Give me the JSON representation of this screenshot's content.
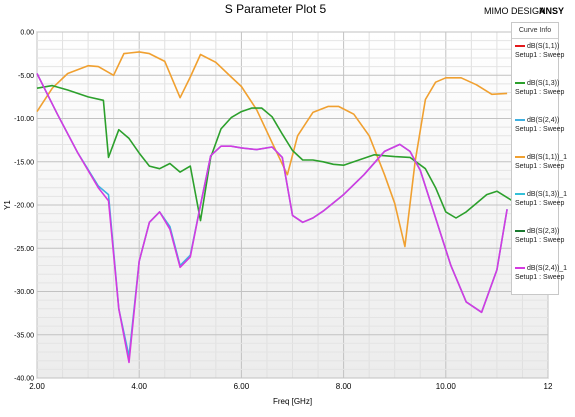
{
  "header": {
    "title": "S Parameter Plot 5",
    "brand_left": "MIMO DESIGN",
    "brand_right": "ANSY"
  },
  "legend": {
    "title": "Curve Info",
    "items": [
      {
        "name": "dB(S(1,1))",
        "sub": "Setup1 : Sweep",
        "color": "#e31a1c"
      },
      {
        "name": "dB(S(1,3))",
        "sub": "Setup1 : Sweep",
        "color": "#2ca02c"
      },
      {
        "name": "dB(S(2,4))",
        "sub": "Setup1 : Sweep",
        "color": "#3fb0e0"
      },
      {
        "name": "dB(S(1,1))_1",
        "sub": "Setup1 : Sweep",
        "color": "#f0a030"
      },
      {
        "name": "dB(S(1,3))_1",
        "sub": "Setup1 : Sweep",
        "color": "#35c0d8"
      },
      {
        "name": "dB(S(2,3))",
        "sub": "Setup1 : Sweep",
        "color": "#1a7a30"
      },
      {
        "name": "dB(S(2,4))_1",
        "sub": "Setup1 : Sweep",
        "color": "#d43ae0"
      }
    ]
  },
  "chart_data": {
    "type": "line",
    "title": "S Parameter Plot 5",
    "xlabel": "Freq [GHz]",
    "ylabel": "Y1",
    "xlim": [
      2.0,
      12.0
    ],
    "ylim": [
      -40.0,
      0.0
    ],
    "xticks": [
      "2.00",
      "4.00",
      "6.00",
      "8.00",
      "10.00",
      "12"
    ],
    "yticks": [
      "0.00",
      "-5.00",
      "-10.00",
      "-15.00",
      "-20.00",
      "-25.00",
      "-30.00",
      "-35.00",
      "-40.00"
    ],
    "grid": true,
    "legend_position": "right",
    "series": [
      {
        "name": "dB(S(1,1))_1",
        "color": "#f0a030",
        "x": [
          2.0,
          2.3,
          2.6,
          3.0,
          3.2,
          3.5,
          3.7,
          4.0,
          4.2,
          4.5,
          4.8,
          5.0,
          5.2,
          5.5,
          5.8,
          6.0,
          6.3,
          6.6,
          6.9,
          7.1,
          7.4,
          7.7,
          7.9,
          8.2,
          8.5,
          8.8,
          9.0,
          9.2,
          9.4,
          9.6,
          9.8,
          10.0,
          10.3,
          10.6,
          10.9,
          11.2
        ],
        "y": [
          -9.2,
          -6.5,
          -4.8,
          -3.9,
          -4.0,
          -5.0,
          -2.5,
          -2.3,
          -2.5,
          -3.4,
          -7.6,
          -5.2,
          -2.6,
          -3.5,
          -5.2,
          -6.3,
          -9.0,
          -12.8,
          -16.5,
          -12.0,
          -9.3,
          -8.6,
          -8.6,
          -9.5,
          -12.0,
          -16.5,
          -19.8,
          -24.8,
          -15.0,
          -7.8,
          -5.8,
          -5.3,
          -5.3,
          -6.1,
          -7.2,
          -7.1
        ]
      },
      {
        "name": "dB(S(1,3))",
        "color": "#2ca02c",
        "x": [
          2.0,
          2.3,
          2.6,
          3.0,
          3.3,
          3.4,
          3.6,
          3.8,
          4.0,
          4.2,
          4.4,
          4.6,
          4.8,
          5.0,
          5.2,
          5.4,
          5.6,
          5.8,
          6.0,
          6.2,
          6.4,
          6.6,
          6.8,
          7.0,
          7.2,
          7.4,
          7.6,
          7.8,
          8.0,
          8.3,
          8.6,
          9.0,
          9.3,
          9.6,
          9.8,
          10.0,
          10.2,
          10.4,
          10.6,
          10.8,
          11.0,
          11.3
        ],
        "y": [
          -6.5,
          -6.2,
          -6.7,
          -7.5,
          -7.9,
          -14.5,
          -11.3,
          -12.3,
          -14.0,
          -15.5,
          -15.8,
          -15.2,
          -16.2,
          -15.5,
          -21.8,
          -14.5,
          -11.2,
          -9.9,
          -9.2,
          -8.8,
          -8.8,
          -9.8,
          -11.8,
          -13.7,
          -14.8,
          -14.8,
          -15.0,
          -15.3,
          -15.4,
          -14.8,
          -14.2,
          -14.4,
          -14.5,
          -15.8,
          -18.0,
          -20.8,
          -21.5,
          -20.8,
          -19.8,
          -18.8,
          -18.4,
          -19.5
        ]
      },
      {
        "name": "dB(S(2,4))",
        "color": "#3fb0e0",
        "x": [
          2.0,
          2.4,
          2.8,
          3.2,
          3.4,
          3.6,
          3.8,
          4.0,
          4.2,
          4.4,
          4.6,
          4.8,
          5.0,
          5.2,
          5.4,
          5.6,
          5.8,
          6.0,
          6.3,
          6.6,
          6.8,
          7.0,
          7.2,
          7.4,
          7.6,
          8.0,
          8.4,
          8.8,
          9.1,
          9.3,
          9.5,
          9.8,
          10.1,
          10.4,
          10.7,
          11.0,
          11.2
        ],
        "y": [
          -4.8,
          -9.5,
          -14.0,
          -17.8,
          -18.8,
          -32.0,
          -37.5,
          -26.5,
          -22.0,
          -20.8,
          -22.5,
          -27.0,
          -25.8,
          -20.0,
          -14.3,
          -13.2,
          -13.2,
          -13.4,
          -13.6,
          -13.3,
          -14.5,
          -21.2,
          -22.0,
          -21.5,
          -20.7,
          -18.8,
          -16.5,
          -13.8,
          -13.0,
          -13.8,
          -16.0,
          -21.5,
          -27.0,
          -31.2,
          -32.4,
          -27.5,
          -20.5
        ]
      },
      {
        "name": "dB(S(2,4))_1",
        "color": "#d43ae0",
        "x": [
          2.0,
          2.4,
          2.8,
          3.2,
          3.4,
          3.6,
          3.8,
          4.0,
          4.2,
          4.4,
          4.6,
          4.8,
          5.0,
          5.2,
          5.4,
          5.6,
          5.8,
          6.0,
          6.3,
          6.6,
          6.8,
          7.0,
          7.2,
          7.4,
          7.6,
          8.0,
          8.4,
          8.8,
          9.1,
          9.3,
          9.5,
          9.8,
          10.1,
          10.4,
          10.7,
          11.0,
          11.2
        ],
        "y": [
          -4.8,
          -9.5,
          -14.0,
          -18.0,
          -19.5,
          -32.0,
          -38.2,
          -26.5,
          -22.0,
          -20.8,
          -22.8,
          -27.2,
          -26.0,
          -20.0,
          -14.3,
          -13.2,
          -13.2,
          -13.4,
          -13.6,
          -13.3,
          -14.5,
          -21.2,
          -22.0,
          -21.5,
          -20.7,
          -18.8,
          -16.5,
          -13.8,
          -13.0,
          -13.8,
          -16.0,
          -21.5,
          -27.0,
          -31.2,
          -32.4,
          -27.5,
          -20.5
        ]
      }
    ]
  }
}
